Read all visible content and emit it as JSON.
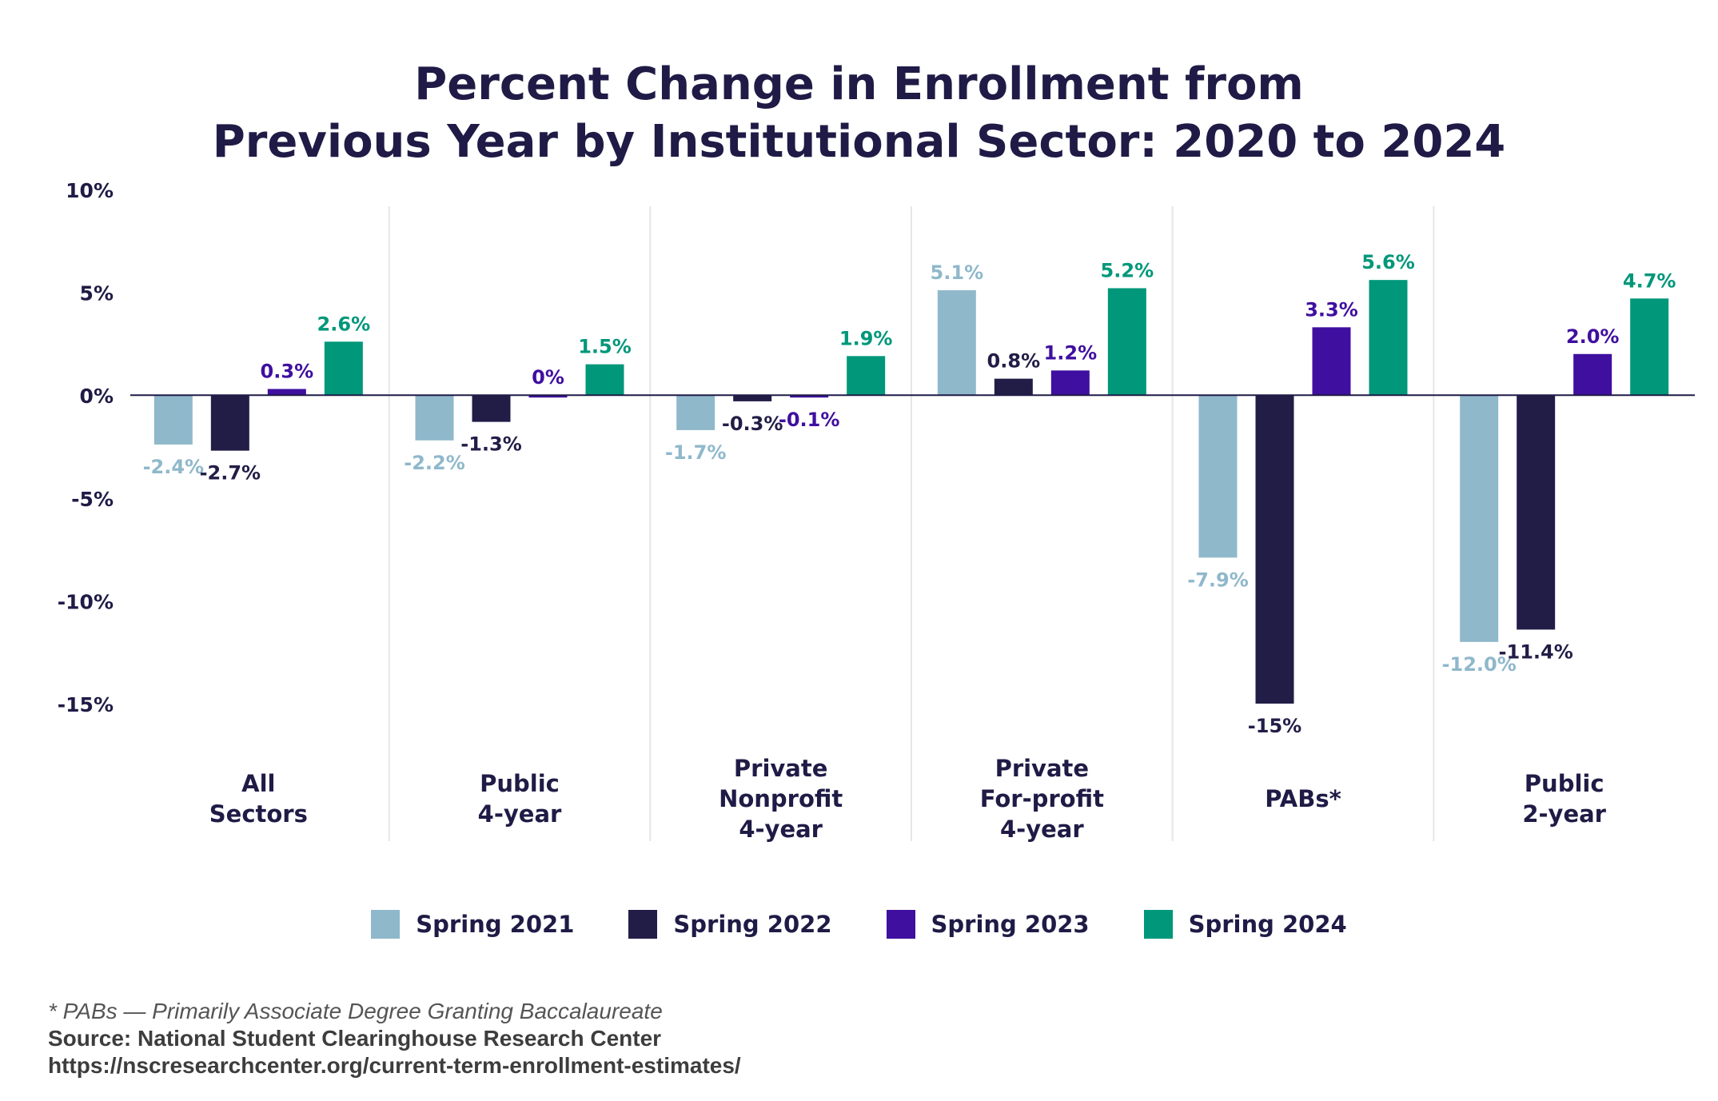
{
  "chart_data": {
    "type": "bar",
    "title_lines": [
      "Percent Change in Enrollment from",
      "Previous Year by Institutional Sector: 2020 to 2024"
    ],
    "categories": [
      [
        "All",
        "Sectors"
      ],
      [
        "Public",
        "4-year"
      ],
      [
        "Private",
        "Nonprofit",
        "4-year"
      ],
      [
        "Private",
        "For-profit",
        "4-year"
      ],
      [
        "PABs*"
      ],
      [
        "Public",
        "2-year"
      ]
    ],
    "series": [
      {
        "name": "Spring 2021",
        "color": "#8fb8cb",
        "values": [
          -2.4,
          -2.2,
          -1.7,
          5.1,
          -7.9,
          -12.0
        ],
        "labels": [
          "-2.4%",
          "-2.2%",
          "-1.7%",
          "5.1%",
          "-7.9%",
          "-12.0%"
        ]
      },
      {
        "name": "Spring 2022",
        "color": "#221d47",
        "values": [
          -2.7,
          -1.3,
          -0.3,
          0.8,
          -15.0,
          -11.4
        ],
        "labels": [
          "-2.7%",
          "-1.3%",
          "-0.3%",
          "0.8%",
          "-15%",
          "-11.4%"
        ]
      },
      {
        "name": "Spring 2023",
        "color": "#3f0fa0",
        "values": [
          0.3,
          0.0,
          -0.1,
          1.2,
          3.3,
          2.0
        ],
        "labels": [
          "0.3%",
          "0%",
          "-0.1%",
          "1.2%",
          "3.3%",
          "2.0%"
        ]
      },
      {
        "name": "Spring 2024",
        "color": "#00977a",
        "values": [
          2.6,
          1.5,
          1.9,
          5.2,
          5.6,
          4.7
        ],
        "labels": [
          "2.6%",
          "1.5%",
          "1.9%",
          "5.2%",
          "5.6%",
          "4.7%"
        ]
      }
    ],
    "y_ticks": [
      10,
      5,
      0,
      -5,
      -10,
      -15
    ],
    "y_tick_labels": [
      "10%",
      "5%",
      "0%",
      "-5%",
      "-10%",
      "-15%"
    ],
    "ylim": [
      -15,
      10
    ],
    "grid": false,
    "legend_position": "bottom"
  },
  "footnotes": {
    "pabs": "* PABs — Primarily Associate Degree Granting Baccalaureate",
    "source": "Source: National Student Clearinghouse Research Center",
    "url": "https://nscresearchcenter.org/current-term-enrollment-estimates/"
  }
}
